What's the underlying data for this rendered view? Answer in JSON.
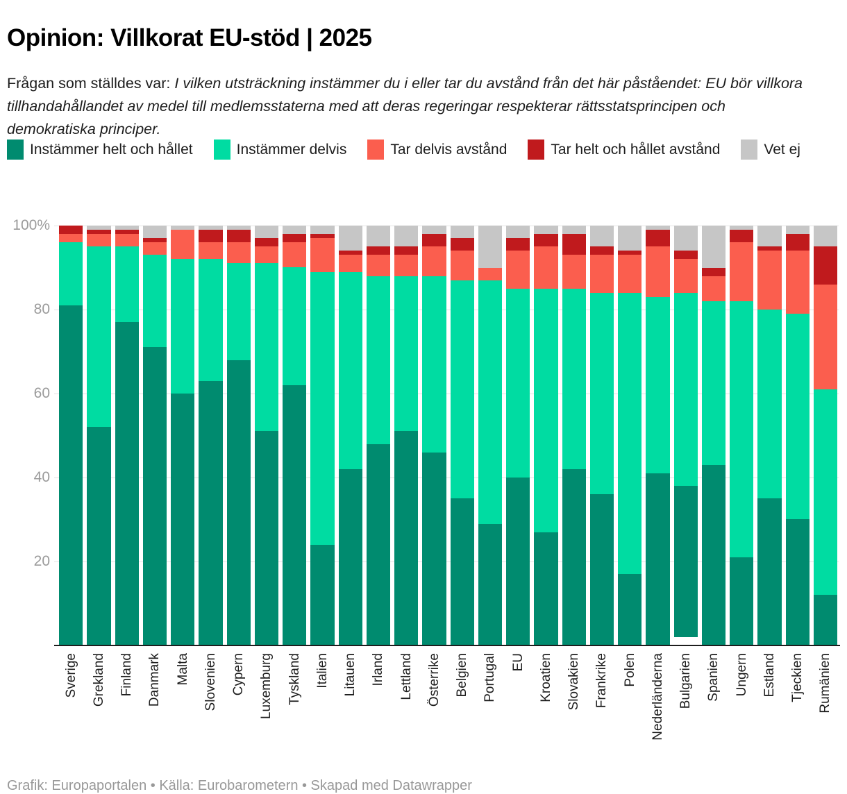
{
  "title": "Opinion: Villkorat EU-stöd | 2025",
  "description": {
    "prefix": "Frågan som ställdes var: ",
    "question_italic": "I vilken utsträckning instämmer du i eller tar du avstånd från det här påståendet: EU bör villkora tillhandahållandet av medel till medlemsstaterna med att deras regeringar respekterar rättsstatsprincipen och demokratiska principer."
  },
  "colors": {
    "agree_full": "#008b6f",
    "agree_partly": "#00dca2",
    "disagree_partly": "#fb5e4e",
    "disagree_full": "#c01a1d",
    "dont_know": "#c6c6c6",
    "gridline": "#e3e3e3",
    "axis_line": "#1d1d1d",
    "tick_label": "#9b9b9b"
  },
  "legend": {
    "items": [
      {
        "key": "agree_full",
        "label": "Instämmer helt och hållet",
        "color": "#008b6f"
      },
      {
        "key": "agree_partly",
        "label": "Instämmer delvis",
        "color": "#00dca2"
      },
      {
        "key": "disagree_partly",
        "label": "Tar delvis avstånd",
        "color": "#fb5e4e"
      },
      {
        "key": "disagree_full",
        "label": "Tar helt och hållet avstånd",
        "color": "#c01a1d"
      },
      {
        "key": "dont_know",
        "label": "Vet ej",
        "color": "#c6c6c6"
      }
    ]
  },
  "y_axis": {
    "ticks": [
      {
        "value": 100,
        "label": "100%"
      },
      {
        "value": 80,
        "label": "80"
      },
      {
        "value": 60,
        "label": "60"
      },
      {
        "value": 40,
        "label": "40"
      },
      {
        "value": 20,
        "label": "20"
      }
    ]
  },
  "chart_data": {
    "type": "bar",
    "stacked": true,
    "unit": "%",
    "ylim": [
      0,
      100
    ],
    "grid": true,
    "legend_position": "top",
    "categories": [
      "Sverige",
      "Grekland",
      "Finland",
      "Danmark",
      "Malta",
      "Slovenien",
      "Cypern",
      "Luxemburg",
      "Tyskland",
      "Italien",
      "Litauen",
      "Irland",
      "Lettland",
      "Österrike",
      "Belgien",
      "Portugal",
      "EU",
      "Kroatien",
      "Slovakien",
      "Frankrike",
      "Polen",
      "Nederländerna",
      "Bulgarien",
      "Spanien",
      "Ungern",
      "Estland",
      "Tjeckien",
      "Rumänien"
    ],
    "series": [
      {
        "key": "agree_full",
        "name": "Instämmer helt och hållet",
        "color": "#008b6f",
        "values": [
          81,
          52,
          77,
          71,
          60,
          63,
          68,
          51,
          62,
          24,
          42,
          48,
          51,
          46,
          35,
          29,
          40,
          27,
          42,
          36,
          17,
          41,
          36,
          43,
          21,
          35,
          30,
          12
        ]
      },
      {
        "key": "agree_partly",
        "name": "Instämmer delvis",
        "color": "#00dca2",
        "values": [
          15,
          43,
          18,
          22,
          32,
          29,
          23,
          40,
          28,
          65,
          47,
          40,
          37,
          42,
          52,
          58,
          45,
          58,
          43,
          48,
          67,
          42,
          46,
          39,
          61,
          45,
          49,
          49
        ]
      },
      {
        "key": "disagree_partly",
        "name": "Tar delvis avstånd",
        "color": "#fb5e4e",
        "values": [
          2,
          3,
          3,
          3,
          7,
          4,
          5,
          4,
          6,
          8,
          4,
          5,
          5,
          7,
          7,
          3,
          9,
          10,
          8,
          9,
          9,
          12,
          8,
          6,
          14,
          14,
          15,
          25
        ]
      },
      {
        "key": "disagree_full",
        "name": "Tar helt och hållet avstånd",
        "color": "#c01a1d",
        "values": [
          2,
          1,
          1,
          1,
          0,
          3,
          3,
          2,
          2,
          1,
          1,
          2,
          2,
          3,
          3,
          0,
          3,
          3,
          5,
          2,
          1,
          4,
          2,
          2,
          3,
          1,
          4,
          9
        ]
      },
      {
        "key": "dont_know",
        "name": "Vet ej",
        "color": "#c6c6c6",
        "values": [
          0,
          1,
          1,
          3,
          1,
          1,
          1,
          3,
          2,
          2,
          6,
          5,
          5,
          2,
          3,
          10,
          3,
          2,
          2,
          5,
          6,
          1,
          6,
          10,
          1,
          5,
          2,
          5
        ]
      }
    ]
  },
  "footer": "Grafik: Europaportalen • Källa: Eurobarometern • Skapad med Datawrapper"
}
